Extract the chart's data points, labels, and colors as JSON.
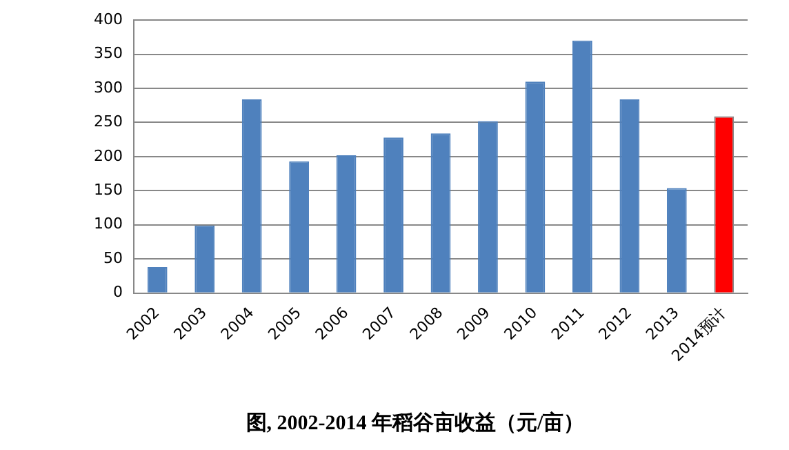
{
  "chart_data": {
    "type": "bar",
    "title": "图, 2002-2014 年稻谷亩收益（元/亩）",
    "categories": [
      "2002",
      "2003",
      "2004",
      "2005",
      "2006",
      "2007",
      "2008",
      "2009",
      "2010",
      "2011",
      "2012",
      "2013",
      "2014预计"
    ],
    "values": [
      38,
      99,
      284,
      193,
      202,
      228,
      234,
      252,
      310,
      370,
      284,
      154,
      259
    ],
    "colors": [
      "#4f81bd",
      "#4f81bd",
      "#4f81bd",
      "#4f81bd",
      "#4f81bd",
      "#4f81bd",
      "#4f81bd",
      "#4f81bd",
      "#4f81bd",
      "#4f81bd",
      "#4f81bd",
      "#4f81bd",
      "#ff0000"
    ],
    "ylim": [
      0,
      400
    ],
    "yticks": [
      0,
      50,
      100,
      150,
      200,
      250,
      300,
      350,
      400
    ],
    "grid": "y",
    "legend": false
  }
}
